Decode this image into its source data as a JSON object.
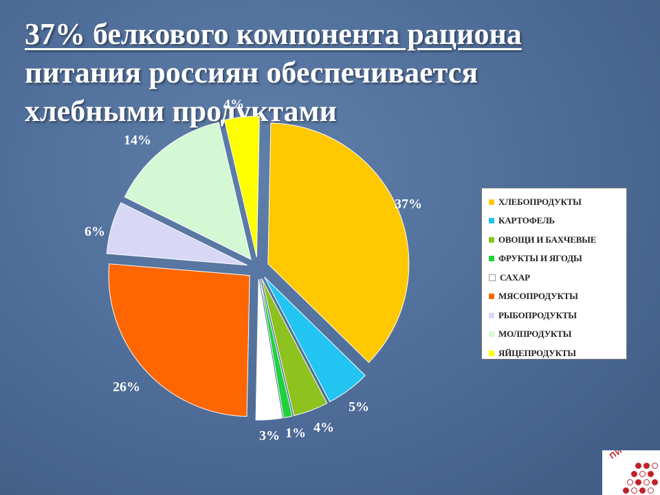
{
  "title": {
    "line1": "37% белкового компонента рациона",
    "line2": "питания россиян обеспечивается",
    "line3": "хлебными продуктами"
  },
  "chart_data": {
    "type": "pie",
    "exploded": true,
    "legend_position": "right",
    "slices": [
      {
        "name": "ХЛЕБОПРОДУКТЫ",
        "value": 37,
        "label": "37%",
        "color": "#FFC800"
      },
      {
        "name": "КАРТОФЕЛЬ",
        "value": 5,
        "label": "5%",
        "color": "#22C4F2"
      },
      {
        "name": "ОВОЩИ И БАХЧЕВЫЕ",
        "value": 4,
        "label": "4%",
        "color": "#8DC21F"
      },
      {
        "name": "ФРУКТЫ И ЯГОДЫ",
        "value": 1,
        "label": "1%",
        "color": "#1FD23A"
      },
      {
        "name": "САХАР",
        "value": 3,
        "label": "3%",
        "color": "#FFFFFF"
      },
      {
        "name": "МЯСОПРОДУКТЫ",
        "value": 26,
        "label": "26%",
        "color": "#FF6600"
      },
      {
        "name": "РЫБОПРОДУКТЫ",
        "value": 6,
        "label": "6%",
        "color": "#D8D8F6"
      },
      {
        "name": "МОЛПРОДУКТЫ",
        "value": 14,
        "label": "14%",
        "color": "#D4F7D4"
      },
      {
        "name": "ЯЙЦЕПРОДУКТЫ",
        "value": 4,
        "label": "4%",
        "color": "#FFFF00"
      }
    ]
  },
  "logo": {
    "text": "ПИТАНИ",
    "color": "#C0202A"
  }
}
